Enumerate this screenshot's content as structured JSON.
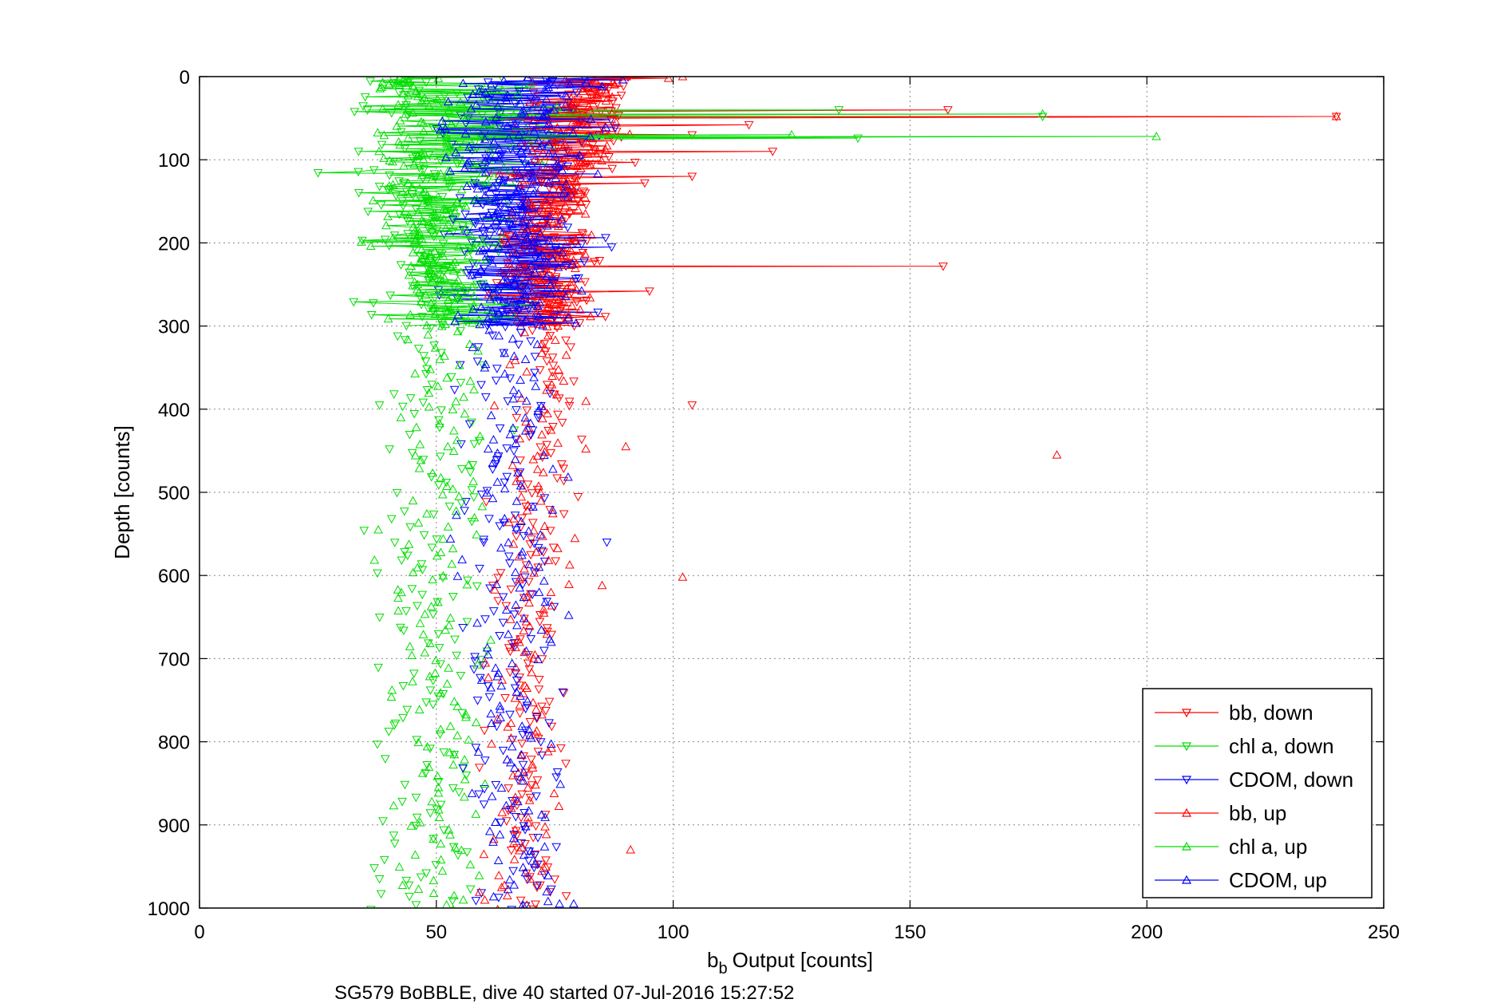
{
  "chart_data": {
    "type": "scatter",
    "title": "",
    "xlabel": "Output [counts]",
    "xlabel_prefix": "b",
    "xlabel_subscript": "b",
    "ylabel": "Depth [counts]",
    "caption": "SG579 BoBBLE, dive 40 started 07-Jul-2016 15:27:52",
    "xlim": [
      0,
      250
    ],
    "ylim": [
      0,
      1000
    ],
    "y_reversed": true,
    "grid": true,
    "grid_style": "dotted",
    "legend_position": "bottom-right",
    "x_ticks": [
      "0",
      "50",
      "100",
      "150",
      "200",
      "250"
    ],
    "y_ticks": [
      "0",
      "100",
      "200",
      "300",
      "400",
      "500",
      "600",
      "700",
      "800",
      "900",
      "1000"
    ],
    "series": [
      {
        "name": "bb, down",
        "color": "#ff0000",
        "marker": "triangle-down",
        "cast": "down",
        "center_profile": [
          [
            0,
            82
          ],
          [
            50,
            80
          ],
          [
            100,
            77
          ],
          [
            200,
            73
          ],
          [
            300,
            74
          ],
          [
            400,
            74
          ],
          [
            500,
            72
          ],
          [
            600,
            70
          ],
          [
            700,
            69
          ],
          [
            800,
            69
          ],
          [
            900,
            70
          ],
          [
            1000,
            71
          ]
        ],
        "spread": 3,
        "outliers": [
          [
            40,
            158
          ],
          [
            48,
            240
          ],
          [
            58,
            116
          ],
          [
            70,
            104
          ],
          [
            90,
            121
          ],
          [
            120,
            104
          ],
          [
            128,
            94
          ],
          [
            228,
            157
          ],
          [
            258,
            95
          ],
          [
            395,
            104
          ]
        ]
      },
      {
        "name": "chl a, down",
        "color": "#00dd00",
        "marker": "triangle-down",
        "cast": "down",
        "center_profile": [
          [
            0,
            52
          ],
          [
            30,
            50
          ],
          [
            60,
            58
          ],
          [
            90,
            54
          ],
          [
            130,
            48
          ],
          [
            200,
            49
          ],
          [
            300,
            48
          ],
          [
            400,
            49
          ],
          [
            600,
            48
          ],
          [
            800,
            49
          ],
          [
            1000,
            48
          ]
        ],
        "spread": 5,
        "outliers": [
          [
            40,
            135
          ],
          [
            48,
            178
          ],
          [
            74,
            139
          ],
          [
            132,
            38
          ],
          [
            395,
            38
          ],
          [
            965,
            38
          ]
        ]
      },
      {
        "name": "CDOM, down",
        "color": "#0000ff",
        "marker": "triangle-down",
        "cast": "down",
        "center_profile": [
          [
            0,
            70
          ],
          [
            50,
            68
          ],
          [
            100,
            66
          ],
          [
            200,
            67
          ],
          [
            300,
            66
          ],
          [
            400,
            66
          ],
          [
            500,
            65
          ],
          [
            600,
            66
          ],
          [
            700,
            65
          ],
          [
            800,
            66
          ],
          [
            900,
            66
          ],
          [
            1000,
            67
          ]
        ],
        "spread": 4,
        "outliers": [
          [
            205,
            87
          ],
          [
            560,
            86
          ],
          [
            560,
            60
          ]
        ]
      },
      {
        "name": "bb, up",
        "color": "#ff0000",
        "marker": "triangle-up",
        "cast": "up",
        "center_profile": [
          [
            0,
            82
          ],
          [
            50,
            80
          ],
          [
            100,
            76
          ],
          [
            200,
            72
          ],
          [
            300,
            73
          ],
          [
            400,
            73
          ],
          [
            500,
            71
          ],
          [
            600,
            70
          ],
          [
            700,
            69
          ],
          [
            800,
            68
          ],
          [
            900,
            69
          ],
          [
            1000,
            68
          ]
        ],
        "spread": 3,
        "outliers": [
          [
            0,
            102
          ],
          [
            2,
            99
          ],
          [
            48,
            240
          ],
          [
            445,
            90
          ],
          [
            455,
            181
          ],
          [
            602,
            102
          ],
          [
            612,
            85
          ],
          [
            930,
            91
          ]
        ]
      },
      {
        "name": "chl a, up",
        "color": "#00dd00",
        "marker": "triangle-up",
        "cast": "up",
        "center_profile": [
          [
            0,
            51
          ],
          [
            30,
            48
          ],
          [
            60,
            56
          ],
          [
            90,
            53
          ],
          [
            130,
            49
          ],
          [
            200,
            50
          ],
          [
            300,
            51
          ],
          [
            400,
            50
          ],
          [
            600,
            50
          ],
          [
            800,
            51
          ],
          [
            1000,
            51
          ]
        ],
        "spread": 4,
        "outliers": [
          [
            45,
            178
          ],
          [
            72,
            202
          ],
          [
            70,
            125
          ],
          [
            10,
            40
          ]
        ]
      },
      {
        "name": "CDOM, up",
        "color": "#0000ff",
        "marker": "triangle-up",
        "cast": "up",
        "center_profile": [
          [
            0,
            69
          ],
          [
            50,
            68
          ],
          [
            100,
            67
          ],
          [
            200,
            67
          ],
          [
            300,
            67
          ],
          [
            400,
            66
          ],
          [
            500,
            66
          ],
          [
            600,
            66
          ],
          [
            700,
            66
          ],
          [
            800,
            66
          ],
          [
            900,
            67
          ],
          [
            1000,
            67
          ]
        ],
        "spread": 4,
        "outliers": [
          [
            995,
            79
          ],
          [
            995,
            76
          ]
        ]
      }
    ]
  }
}
